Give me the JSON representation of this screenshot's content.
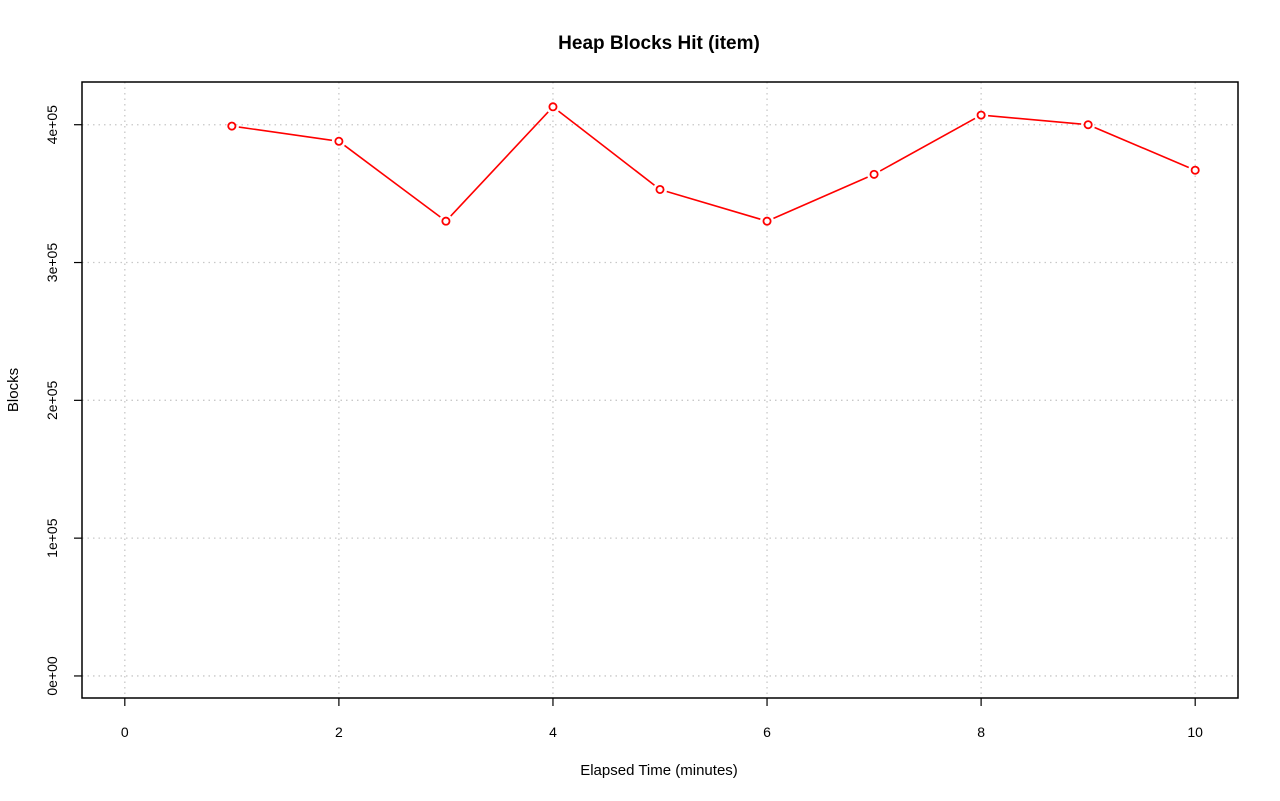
{
  "chart_data": {
    "type": "line",
    "title": "Heap Blocks Hit (item)",
    "xlabel": "Elapsed Time (minutes)",
    "ylabel": "Blocks",
    "xlim": [
      -0.4,
      10.4
    ],
    "ylim": [
      -16000,
      431000
    ],
    "x_ticks": [
      0,
      2,
      4,
      6,
      8,
      10
    ],
    "x_tick_labels": [
      "0",
      "2",
      "4",
      "6",
      "8",
      "10"
    ],
    "y_ticks": [
      0,
      100000,
      200000,
      300000,
      400000
    ],
    "y_tick_labels": [
      "0e+00",
      "1e+05",
      "2e+05",
      "3e+05",
      "4e+05"
    ],
    "grid": true,
    "series": [
      {
        "color": "#ff0000",
        "x": [
          1,
          2,
          3,
          4,
          5,
          6,
          7,
          8,
          9,
          10
        ],
        "y": [
          399000,
          388000,
          330000,
          413000,
          353000,
          330000,
          364000,
          407000,
          400000,
          367000
        ]
      }
    ]
  }
}
